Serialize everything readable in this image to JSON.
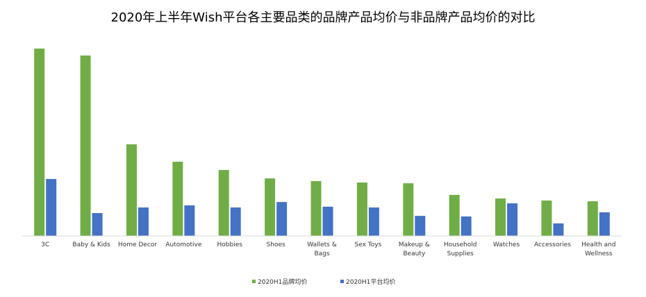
{
  "chart_data": {
    "type": "bar",
    "title": "2020年上半年Wish平台各主要品类的品牌产品均价与非品牌产品均价的对比",
    "xlabel": "",
    "ylabel": "",
    "ylim": [
      0,
      100
    ],
    "grid": false,
    "legend_position": "bottom",
    "categories": [
      [
        "3C"
      ],
      [
        "Baby & Kids"
      ],
      [
        "Home Decor"
      ],
      [
        "Automotive"
      ],
      [
        "Hobbies"
      ],
      [
        "Shoes"
      ],
      [
        "Wallets &",
        "Bags"
      ],
      [
        "Sex Toys"
      ],
      [
        "Makeup &",
        "Beauty"
      ],
      [
        "Household",
        "Supplies"
      ],
      [
        "Watches"
      ],
      [
        "Accessories"
      ],
      [
        "Health and",
        "Wellness"
      ]
    ],
    "series": [
      {
        "name": "2020H1品牌均价",
        "color": "#70ad47",
        "values": [
          100,
          96.3,
          48.9,
          39.6,
          35.2,
          30.7,
          29.3,
          28.5,
          28.1,
          21.9,
          20.0,
          18.9,
          18.5
        ]
      },
      {
        "name": "2020H1平台均价",
        "color": "#4472c4",
        "values": [
          30.4,
          12.2,
          15.2,
          16.3,
          15.2,
          18.1,
          15.6,
          15.2,
          10.7,
          10.4,
          17.4,
          6.7,
          12.6
        ]
      }
    ]
  }
}
